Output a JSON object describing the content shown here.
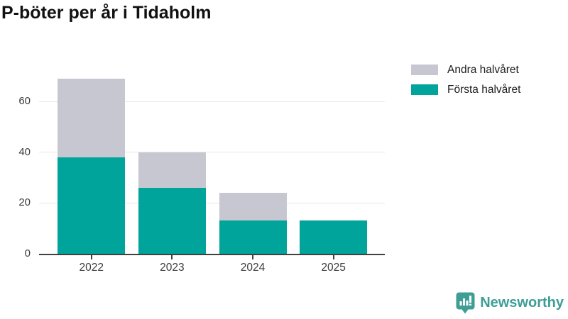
{
  "chart_data": {
    "type": "bar",
    "stacked": true,
    "title": "P-böter per år i Tidaholm",
    "categories": [
      "2022",
      "2023",
      "2024",
      "2025"
    ],
    "series": [
      {
        "name": "Första halvåret",
        "color": "#00a49a",
        "values": [
          38,
          26,
          13,
          13
        ]
      },
      {
        "name": "Andra halvåret",
        "color": "#c7c7d1",
        "values": [
          31,
          14,
          11,
          0
        ]
      }
    ],
    "legend_items": [
      {
        "label": "Andra halvåret",
        "color": "#c7c7d1"
      },
      {
        "label": "Första halvåret",
        "color": "#00a49a"
      }
    ],
    "yticks": [
      0,
      20,
      40,
      60
    ],
    "ylim": [
      0,
      76
    ],
    "grid": true,
    "legend_position": "top-right",
    "axis_color": "#404040",
    "grid_color": "#e7e7e7"
  },
  "branding": {
    "name": "Newsworthy",
    "color": "#3e9e96"
  }
}
